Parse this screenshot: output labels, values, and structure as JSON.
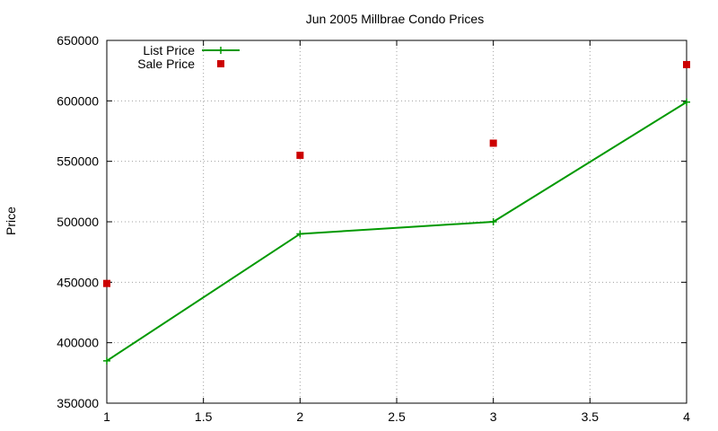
{
  "chart_data": {
    "type": "line",
    "title": "Jun 2005 Millbrae Condo Prices",
    "xlabel": "",
    "ylabel": "Price",
    "xlim": [
      1,
      4
    ],
    "ylim": [
      350000,
      650000
    ],
    "xticks": [
      "1",
      "1.5",
      "2",
      "2.5",
      "3",
      "3.5",
      "4"
    ],
    "yticks": [
      "350000",
      "400000",
      "450000",
      "500000",
      "550000",
      "600000",
      "650000"
    ],
    "grid": true,
    "legend_position": "top-left",
    "series": [
      {
        "name": "List Price",
        "style": "line-with-plus-markers",
        "color": "#009900",
        "x": [
          1,
          2,
          3,
          4
        ],
        "y": [
          385000,
          490000,
          500000,
          599000
        ]
      },
      {
        "name": "Sale Price",
        "style": "square-markers",
        "color": "#cc0000",
        "x": [
          1,
          2,
          3,
          4
        ],
        "y": [
          449000,
          555000,
          565000,
          630000
        ]
      }
    ]
  }
}
